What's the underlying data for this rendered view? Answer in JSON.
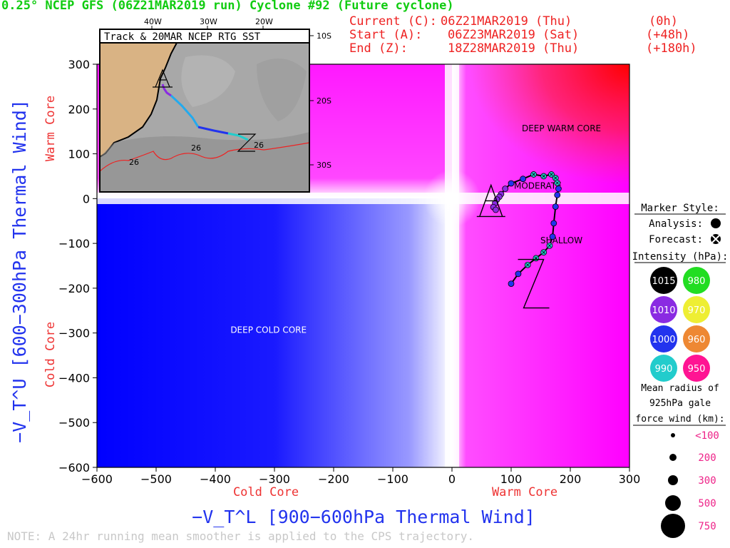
{
  "header": {
    "title": "0.25° NCEP GFS (06Z21MAR2019 run) Cyclone #92 (Future cyclone)",
    "current_label": "Current (C):",
    "current_value": "06Z21MAR2019 (Thu)",
    "current_offset": "(0h)",
    "start_label": "Start (A):",
    "start_value": "06Z23MAR2019 (Sat)",
    "start_offset": "(+48h)",
    "end_label": "End (Z):",
    "end_value": "18Z28MAR2019 (Thu)",
    "end_offset": "(+180h)"
  },
  "note": "NOTE: A 24hr running mean smoother is applied to the CPS trajectory.",
  "colors": {
    "title": "#11cc11",
    "info": "#ee2222",
    "axis_label": "#2233ee",
    "core_label": "#ee3333"
  },
  "chart_data": {
    "type": "scatter",
    "xlabel": "−V_T^L [900−600hPa Thermal Wind]",
    "ylabel": "−V_T^U [600−300hPa Thermal Wind]",
    "xlim": [
      -600,
      300
    ],
    "ylim": [
      -600,
      300
    ],
    "xticks": [
      -600,
      -500,
      -400,
      -300,
      -200,
      -100,
      0,
      100,
      200,
      300
    ],
    "yticks": [
      300,
      200,
      100,
      0,
      -100,
      -200,
      -300,
      -400,
      -500,
      -600
    ],
    "x_cold_label": "Cold Core",
    "x_warm_label": "Warm Core",
    "y_cold_label": "Cold Core",
    "y_warm_label": "Warm Core",
    "regions": [
      {
        "label": "DEEP WARM CORE",
        "x": 185,
        "y": 150
      },
      {
        "label": "MODERATE",
        "x": 145,
        "y": 22
      },
      {
        "label": "SHALLOW",
        "x": 185,
        "y": -100
      },
      {
        "label": "DEEP COLD CORE",
        "x": -310,
        "y": -300
      }
    ],
    "start_marker": {
      "label": "A",
      "x": 66,
      "y": -5
    },
    "end_marker": {
      "label": "Z",
      "x": 138,
      "y": -190
    },
    "track": [
      {
        "x": 83,
        "y": 10,
        "hpa": 1010
      },
      {
        "x": 80,
        "y": 4,
        "hpa": 1010
      },
      {
        "x": 76,
        "y": -2,
        "hpa": 1010
      },
      {
        "x": 73,
        "y": -10,
        "hpa": 1010
      },
      {
        "x": 70,
        "y": -19,
        "hpa": 1010
      },
      {
        "x": 74,
        "y": -25,
        "hpa": 1010
      },
      {
        "x": 90,
        "y": 22,
        "hpa": 1010
      },
      {
        "x": 100,
        "y": 34,
        "hpa": 1000
      },
      {
        "x": 120,
        "y": 44,
        "hpa": 1000
      },
      {
        "x": 138,
        "y": 54,
        "hpa": 990
      },
      {
        "x": 155,
        "y": 50,
        "hpa": 990
      },
      {
        "x": 168,
        "y": 54,
        "hpa": 990
      },
      {
        "x": 175,
        "y": 46,
        "hpa": 990
      },
      {
        "x": 178,
        "y": 35,
        "hpa": 990
      },
      {
        "x": 180,
        "y": 22,
        "hpa": 1000
      },
      {
        "x": 178,
        "y": 8,
        "hpa": 1000
      },
      {
        "x": 175,
        "y": -18,
        "hpa": 1000
      },
      {
        "x": 172,
        "y": -55,
        "hpa": 1000
      },
      {
        "x": 170,
        "y": -85,
        "hpa": 1000
      },
      {
        "x": 165,
        "y": -105,
        "hpa": 990
      },
      {
        "x": 155,
        "y": -120,
        "hpa": 990
      },
      {
        "x": 142,
        "y": -133,
        "hpa": 990
      },
      {
        "x": 128,
        "y": -148,
        "hpa": 990
      },
      {
        "x": 112,
        "y": -168,
        "hpa": 1000
      },
      {
        "x": 100,
        "y": -190,
        "hpa": 1000
      }
    ]
  },
  "inset": {
    "title": "Track & 20MAR NCEP RTG SST",
    "lon_labels": [
      "40W",
      "30W",
      "20W"
    ],
    "lat_labels": [
      "10S",
      "20S",
      "30S"
    ],
    "sst_labels": [
      "26",
      "26",
      "26"
    ],
    "start_label": "A",
    "end_label": "Z"
  },
  "legend": {
    "marker_style_title": "Marker Style:",
    "analysis_label": "Analysis:",
    "forecast_label": "Forecast:",
    "intensity_title": "Intensity (hPa):",
    "intensity": [
      {
        "value": "1015",
        "color": "#000000",
        "text_color": "#ffffff"
      },
      {
        "value": "980",
        "color": "#22dd22",
        "text_color": "#ffffff"
      },
      {
        "value": "1010",
        "color": "#8a2be2",
        "text_color": "#ffffff"
      },
      {
        "value": "970",
        "color": "#eeee33",
        "text_color": "#ffffff"
      },
      {
        "value": "1000",
        "color": "#2233ee",
        "text_color": "#ffffff"
      },
      {
        "value": "960",
        "color": "#ee8833",
        "text_color": "#ffffff"
      },
      {
        "value": "990",
        "color": "#22cccc",
        "text_color": "#ffffff"
      },
      {
        "value": "950",
        "color": "#ff1493",
        "text_color": "#ffffff"
      }
    ],
    "radius_title_1": "Mean radius of",
    "radius_title_2": "925hPa gale",
    "radius_title_3": "force wind (km):",
    "radius": [
      {
        "label": "<100"
      },
      {
        "label": "200"
      },
      {
        "label": "300"
      },
      {
        "label": "500"
      },
      {
        "label": "750"
      }
    ]
  }
}
